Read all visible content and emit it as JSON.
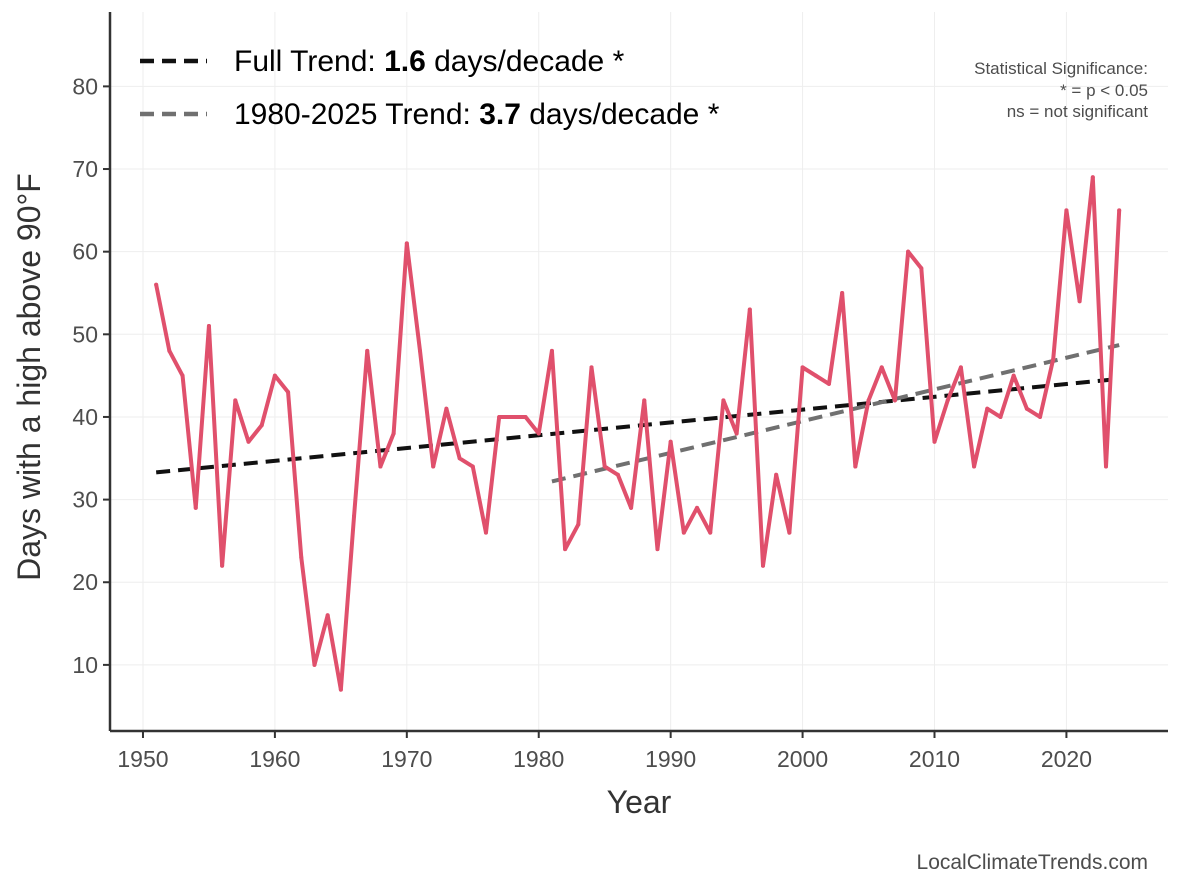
{
  "chart_data": {
    "type": "line",
    "xlabel": "Year",
    "ylabel": "Days with a high above 90°F",
    "xlim": [
      1947.5,
      2027.7
    ],
    "ylim": [
      2,
      89
    ],
    "xticks": [
      1950,
      1960,
      1970,
      1980,
      1990,
      2000,
      2010,
      2020
    ],
    "yticks": [
      10,
      20,
      30,
      40,
      50,
      60,
      70,
      80
    ],
    "grid": true,
    "legend_position": "top-left",
    "colors": {
      "observed": "#e0506c",
      "full_trend": "#111111",
      "recent_trend": "#707070",
      "grid": "#eeeeee",
      "axis": "#333333"
    },
    "series": [
      {
        "key": "observed",
        "x": [
          1951,
          1952,
          1953,
          1954,
          1955,
          1956,
          1957,
          1958,
          1959,
          1960,
          1961,
          1962,
          1963,
          1964,
          1965,
          1966,
          1967,
          1968,
          1969,
          1970,
          1971,
          1972,
          1973,
          1974,
          1975,
          1976,
          1977,
          1978,
          1979,
          1980,
          1981,
          1982,
          1983,
          1984,
          1985,
          1986,
          1987,
          1988,
          1989,
          1990,
          1991,
          1992,
          1993,
          1994,
          1995,
          1996,
          1997,
          1998,
          1999,
          2000,
          2001,
          2002,
          2003,
          2004,
          2005,
          2006,
          2007,
          2008,
          2009,
          2010,
          2011,
          2012,
          2013,
          2014,
          2015,
          2016,
          2017,
          2018,
          2019,
          2020,
          2021,
          2022,
          2023,
          2024
        ],
        "values": [
          56,
          48,
          45,
          29,
          51,
          22,
          42,
          37,
          39,
          45,
          43,
          23,
          10,
          16,
          7,
          28,
          48,
          34,
          38,
          61,
          48,
          34,
          41,
          35,
          34,
          26,
          40,
          40,
          40,
          38,
          48,
          24,
          27,
          46,
          34,
          33,
          29,
          42,
          24,
          37,
          26,
          29,
          26,
          42,
          38,
          53,
          22,
          33,
          26,
          46,
          45,
          44,
          55,
          34,
          42,
          46,
          42,
          60,
          58,
          37,
          42,
          46,
          34,
          41,
          40,
          45,
          41,
          40,
          47,
          65,
          54,
          69,
          34,
          65
        ]
      }
    ],
    "trend_lines": [
      {
        "key": "full_trend",
        "x": [
          1951,
          2024
        ],
        "values": [
          33.3,
          44.6
        ],
        "dash": "14,8"
      },
      {
        "key": "recent_trend",
        "x": [
          1981,
          2024
        ],
        "values": [
          32.2,
          48.7
        ],
        "dash": "14,8"
      }
    ],
    "legend": [
      {
        "key": "full_trend",
        "prefix": "Full Trend: ",
        "value": "1.6",
        "suffix": " days/decade *"
      },
      {
        "key": "recent_trend",
        "prefix": "1980-2025 Trend: ",
        "value": "3.7",
        "suffix": " days/decade *"
      }
    ],
    "significance_note": [
      "Statistical Significance:",
      "* = p < 0.05",
      "ns = not significant"
    ],
    "credit": "LocalClimateTrends.com"
  }
}
